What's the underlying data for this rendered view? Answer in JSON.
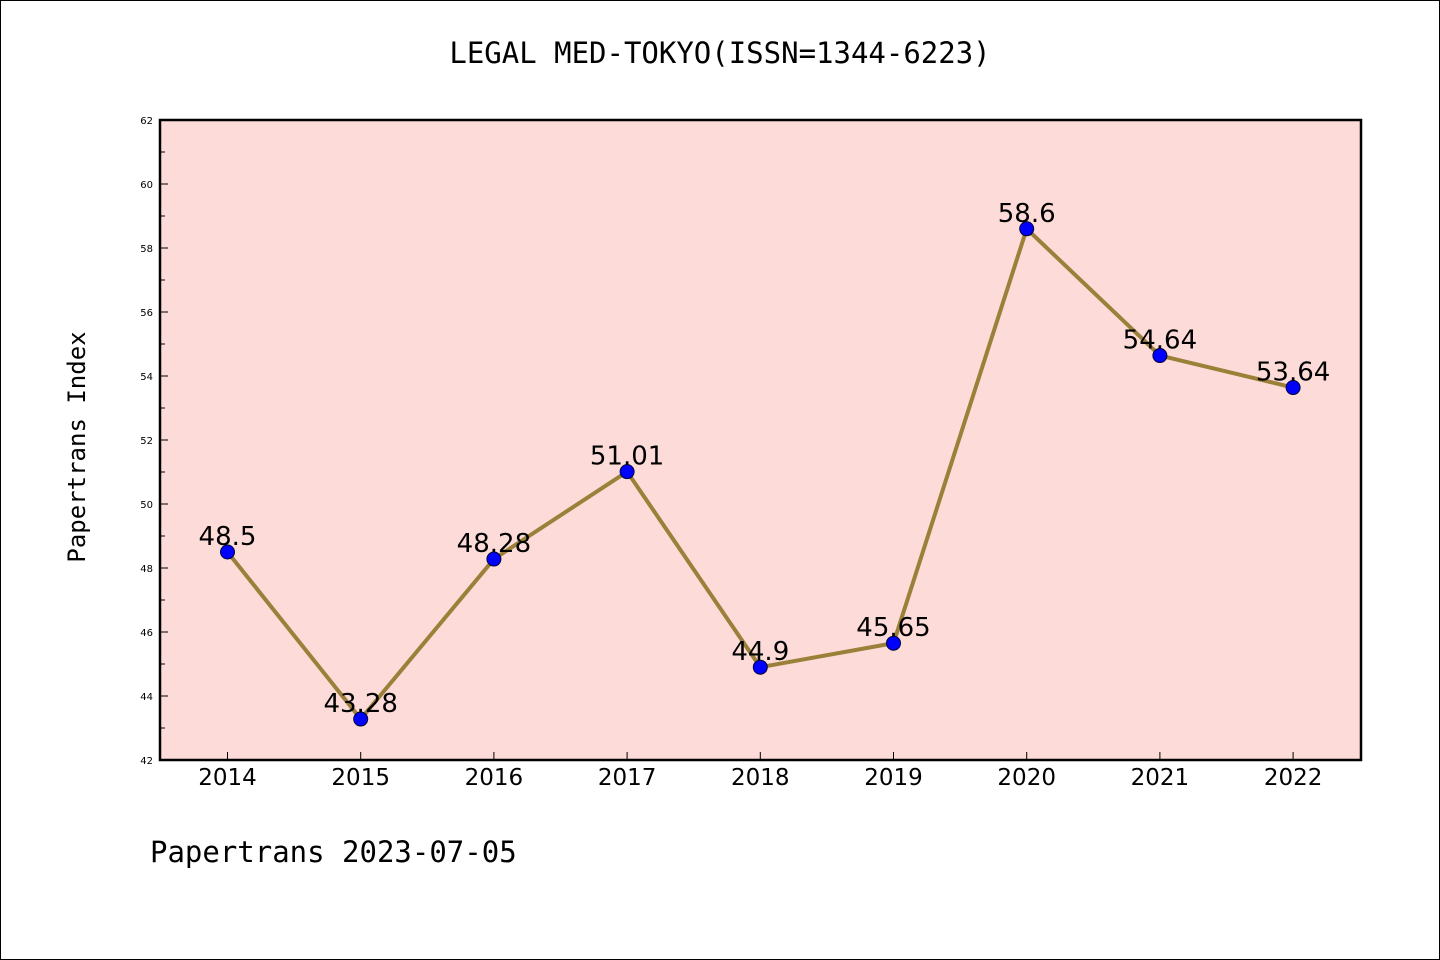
{
  "chart_data": {
    "type": "line",
    "title": "LEGAL MED-TOKYO(ISSN=1344-6223)",
    "ylabel": "Papertrans Index",
    "xlabel": "",
    "categories": [
      "2014",
      "2015",
      "2016",
      "2017",
      "2018",
      "2019",
      "2020",
      "2021",
      "2022"
    ],
    "values": [
      48.5,
      43.28,
      48.28,
      51.01,
      44.9,
      45.65,
      58.6,
      54.64,
      53.64
    ],
    "data_labels": [
      "48.5",
      "43.28",
      "48.28",
      "51.01",
      "44.9",
      "45.65",
      "58.6",
      "54.64",
      "53.64"
    ],
    "ylim": [
      42,
      62
    ],
    "yticks": [
      42,
      44,
      46,
      48,
      50,
      52,
      54,
      56,
      58,
      60,
      62
    ],
    "grid": false,
    "legend": "none",
    "colors": {
      "plot_background": "#fddbd8",
      "line": "#9a8038",
      "marker": "#0000ff",
      "axis": "#000000"
    }
  },
  "footer": "Papertrans 2023-07-05"
}
